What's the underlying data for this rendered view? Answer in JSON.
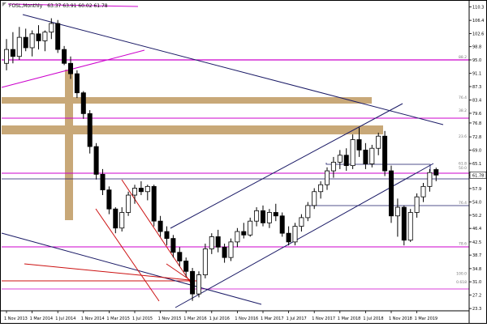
{
  "header": {
    "symbol": "FOSL,Monthly",
    "ohlc": "63.37 63.91 60.02 61.78"
  },
  "chart_data": {
    "type": "candlestick",
    "symbol": "FOSL",
    "timeframe": "Monthly",
    "y_axis_ticks": [
      110.3,
      106.4,
      102.6,
      98.8,
      95.0,
      91.1,
      87.3,
      83.4,
      79.6,
      76.8,
      72.8,
      69.0,
      65.1,
      61.78,
      57.9,
      54.0,
      50.2,
      46.4,
      42.5,
      38.7,
      34.8,
      31.0,
      27.2,
      23.3
    ],
    "current_price": 61.78,
    "x_axis_ticks": [
      "1 Nov 2013",
      "1 Mar 2014",
      "1 Jul 2014",
      "1 Nov 2014",
      "1 Mar 2015",
      "1 Jul 2015",
      "1 Nov 2015",
      "1 Mar 2016",
      "1 Jul 2016",
      "1 Nov 2016",
      "1 Mar 2017",
      "1 Jul 2017",
      "1 Nov 2017",
      "1 Mar 2018",
      "1 Jul 2018",
      "1 Nov 2018",
      "1 Mar 2019"
    ],
    "candles": [
      {
        "o": 94.0,
        "h": 101.0,
        "l": 92.0,
        "c": 98.0
      },
      {
        "o": 98.0,
        "h": 103.0,
        "l": 94.0,
        "c": 96.0
      },
      {
        "o": 96.0,
        "h": 104.5,
        "l": 95.0,
        "c": 101.5
      },
      {
        "o": 101.5,
        "h": 104.0,
        "l": 97.5,
        "c": 98.5
      },
      {
        "o": 98.5,
        "h": 103.5,
        "l": 96.0,
        "c": 102.5
      },
      {
        "o": 102.5,
        "h": 105.0,
        "l": 98.0,
        "c": 100.5
      },
      {
        "o": 100.5,
        "h": 103.5,
        "l": 97.5,
        "c": 103.0
      },
      {
        "o": 103.0,
        "h": 107.0,
        "l": 101.0,
        "c": 105.5
      },
      {
        "o": 105.5,
        "h": 106.5,
        "l": 97.0,
        "c": 98.0
      },
      {
        "o": 98.0,
        "h": 99.0,
        "l": 93.5,
        "c": 94.0
      },
      {
        "o": 94.0,
        "h": 96.0,
        "l": 89.5,
        "c": 91.0
      },
      {
        "o": 91.0,
        "h": 92.0,
        "l": 84.0,
        "c": 85.5
      },
      {
        "o": 85.5,
        "h": 86.0,
        "l": 78.0,
        "c": 79.5
      },
      {
        "o": 79.5,
        "h": 80.5,
        "l": 68.0,
        "c": 70.0
      },
      {
        "o": 70.0,
        "h": 71.0,
        "l": 60.5,
        "c": 62.0
      },
      {
        "o": 62.0,
        "h": 63.5,
        "l": 56.0,
        "c": 57.5
      },
      {
        "o": 57.5,
        "h": 58.5,
        "l": 50.5,
        "c": 52.0
      },
      {
        "o": 52.0,
        "h": 52.5,
        "l": 45.0,
        "c": 46.5
      },
      {
        "o": 46.5,
        "h": 52.5,
        "l": 45.5,
        "c": 51.0
      },
      {
        "o": 51.0,
        "h": 57.0,
        "l": 50.0,
        "c": 56.0
      },
      {
        "o": 56.0,
        "h": 59.0,
        "l": 53.5,
        "c": 58.0
      },
      {
        "o": 58.0,
        "h": 60.0,
        "l": 56.0,
        "c": 57.0
      },
      {
        "o": 57.0,
        "h": 59.0,
        "l": 54.5,
        "c": 58.5
      },
      {
        "o": 58.5,
        "h": 59.0,
        "l": 47.0,
        "c": 48.5
      },
      {
        "o": 48.5,
        "h": 50.0,
        "l": 44.0,
        "c": 45.5
      },
      {
        "o": 45.5,
        "h": 47.0,
        "l": 41.5,
        "c": 43.5
      },
      {
        "o": 43.5,
        "h": 44.5,
        "l": 38.0,
        "c": 39.5
      },
      {
        "o": 39.5,
        "h": 41.0,
        "l": 35.5,
        "c": 37.0
      },
      {
        "o": 37.0,
        "h": 38.0,
        "l": 32.5,
        "c": 34.0
      },
      {
        "o": 34.0,
        "h": 35.0,
        "l": 25.5,
        "c": 27.5
      },
      {
        "o": 27.5,
        "h": 34.0,
        "l": 26.5,
        "c": 33.0
      },
      {
        "o": 33.0,
        "h": 42.0,
        "l": 32.0,
        "c": 40.5
      },
      {
        "o": 40.5,
        "h": 45.0,
        "l": 39.0,
        "c": 44.0
      },
      {
        "o": 44.0,
        "h": 46.0,
        "l": 39.5,
        "c": 41.0
      },
      {
        "o": 41.0,
        "h": 42.0,
        "l": 36.5,
        "c": 38.0
      },
      {
        "o": 38.0,
        "h": 43.5,
        "l": 37.0,
        "c": 42.5
      },
      {
        "o": 42.5,
        "h": 46.5,
        "l": 41.0,
        "c": 45.5
      },
      {
        "o": 45.5,
        "h": 48.0,
        "l": 43.5,
        "c": 44.5
      },
      {
        "o": 44.5,
        "h": 49.5,
        "l": 44.0,
        "c": 48.5
      },
      {
        "o": 48.5,
        "h": 52.5,
        "l": 47.0,
        "c": 51.5
      },
      {
        "o": 51.5,
        "h": 53.0,
        "l": 47.0,
        "c": 48.0
      },
      {
        "o": 48.0,
        "h": 52.0,
        "l": 46.5,
        "c": 51.0
      },
      {
        "o": 51.0,
        "h": 53.5,
        "l": 48.5,
        "c": 50.0
      },
      {
        "o": 50.0,
        "h": 51.0,
        "l": 44.0,
        "c": 45.0
      },
      {
        "o": 45.0,
        "h": 47.0,
        "l": 41.5,
        "c": 42.5
      },
      {
        "o": 42.5,
        "h": 48.0,
        "l": 41.5,
        "c": 47.0
      },
      {
        "o": 47.0,
        "h": 50.5,
        "l": 45.5,
        "c": 49.5
      },
      {
        "o": 49.5,
        "h": 54.0,
        "l": 48.5,
        "c": 53.0
      },
      {
        "o": 53.0,
        "h": 58.0,
        "l": 52.0,
        "c": 57.0
      },
      {
        "o": 57.0,
        "h": 60.0,
        "l": 55.0,
        "c": 59.0
      },
      {
        "o": 59.0,
        "h": 64.0,
        "l": 57.5,
        "c": 63.0
      },
      {
        "o": 63.0,
        "h": 67.0,
        "l": 61.0,
        "c": 65.5
      },
      {
        "o": 65.5,
        "h": 69.0,
        "l": 63.5,
        "c": 67.5
      },
      {
        "o": 67.5,
        "h": 69.5,
        "l": 63.0,
        "c": 64.5
      },
      {
        "o": 64.5,
        "h": 73.5,
        "l": 63.5,
        "c": 72.0
      },
      {
        "o": 72.0,
        "h": 75.5,
        "l": 67.0,
        "c": 69.0
      },
      {
        "o": 69.0,
        "h": 71.0,
        "l": 63.5,
        "c": 65.0
      },
      {
        "o": 65.0,
        "h": 70.5,
        "l": 64.0,
        "c": 69.5
      },
      {
        "o": 69.5,
        "h": 74.0,
        "l": 67.5,
        "c": 73.0
      },
      {
        "o": 73.0,
        "h": 74.5,
        "l": 61.5,
        "c": 63.0
      },
      {
        "o": 63.0,
        "h": 64.5,
        "l": 48.0,
        "c": 50.0
      },
      {
        "o": 50.0,
        "h": 55.0,
        "l": 44.0,
        "c": 52.5
      },
      {
        "o": 52.5,
        "h": 53.0,
        "l": 41.5,
        "c": 43.0
      },
      {
        "o": 43.0,
        "h": 52.0,
        "l": 42.5,
        "c": 51.0
      },
      {
        "o": 51.0,
        "h": 56.5,
        "l": 49.5,
        "c": 55.5
      },
      {
        "o": 55.5,
        "h": 59.5,
        "l": 54.0,
        "c": 58.5
      },
      {
        "o": 58.5,
        "h": 63.5,
        "l": 57.0,
        "c": 62.5
      },
      {
        "o": 63.37,
        "h": 63.91,
        "l": 60.02,
        "c": 61.78
      }
    ],
    "fib_labels": [
      {
        "text": "88.2",
        "price": 95.2
      },
      {
        "text": "76.4",
        "price": 83.6
      },
      {
        "text": "38.2",
        "price": 79.8
      },
      {
        "text": "23.6",
        "price": 72.4
      },
      {
        "text": "61.8",
        "price": 64.5
      },
      {
        "text": "50.0",
        "price": 63.3
      },
      {
        "text": "76.4",
        "price": 53.2
      },
      {
        "text": "78.6",
        "price": 41.4
      },
      {
        "text": "100.0",
        "price": 32.8
      },
      {
        "text": "0.618",
        "price": 30.3
      }
    ]
  },
  "colors": {
    "background": "#ffffff",
    "bull_candle": "#ffffff",
    "bear_candle": "#000000",
    "magenta": "#cc00cc",
    "navy": "#1a1a66",
    "red": "#cc1111",
    "tan": "#c8a878"
  }
}
